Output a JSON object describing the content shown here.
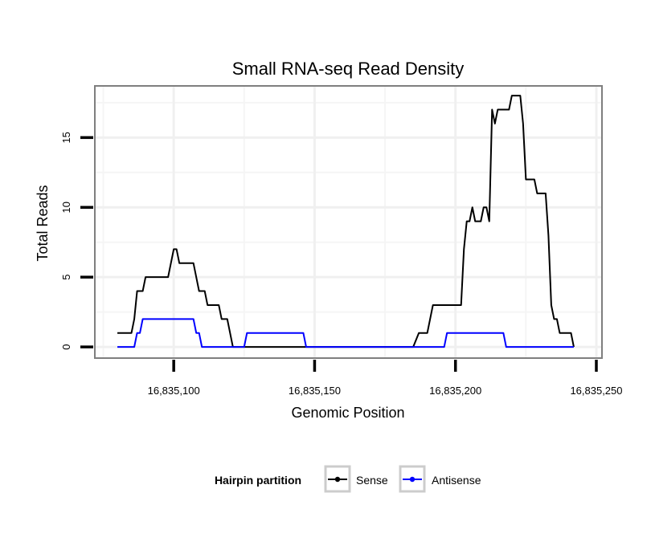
{
  "chart_data": {
    "type": "line",
    "title": "Small RNA-seq Read Density",
    "xlabel": "Genomic Position",
    "ylabel": "Total Reads",
    "xlim": [
      16835072,
      16835252
    ],
    "ylim": [
      -0.8,
      18.7
    ],
    "x_ticks": [
      16835100,
      16835150,
      16835200,
      16835250
    ],
    "x_tick_labels": [
      "16,835,100",
      "16,835,150",
      "16,835,200",
      "16,835,250"
    ],
    "y_ticks": [
      0,
      5,
      10,
      15
    ],
    "y_tick_labels": [
      "0",
      "5",
      "10",
      "15"
    ],
    "grid": true,
    "legend": {
      "title": "Hairpin partition",
      "position": "bottom"
    },
    "series": [
      {
        "name": "Sense",
        "color": "#000000",
        "points": [
          [
            16835080,
            1
          ],
          [
            16835085,
            1
          ],
          [
            16835086,
            2
          ],
          [
            16835087,
            4
          ],
          [
            16835089,
            4
          ],
          [
            16835090,
            5
          ],
          [
            16835098,
            5
          ],
          [
            16835100,
            7
          ],
          [
            16835101,
            7
          ],
          [
            16835102,
            6
          ],
          [
            16835107,
            6
          ],
          [
            16835109,
            4
          ],
          [
            16835111,
            4
          ],
          [
            16835112,
            3
          ],
          [
            16835116,
            3
          ],
          [
            16835117,
            2
          ],
          [
            16835119,
            2
          ],
          [
            16835121,
            0
          ],
          [
            16835185,
            0
          ],
          [
            16835187,
            1
          ],
          [
            16835190,
            1
          ],
          [
            16835192,
            3
          ],
          [
            16835202,
            3
          ],
          [
            16835203,
            7
          ],
          [
            16835204,
            9
          ],
          [
            16835205,
            9
          ],
          [
            16835206,
            10
          ],
          [
            16835207,
            9
          ],
          [
            16835209,
            9
          ],
          [
            16835210,
            10
          ],
          [
            16835211,
            10
          ],
          [
            16835212,
            9
          ],
          [
            16835213,
            17
          ],
          [
            16835214,
            16
          ],
          [
            16835215,
            17
          ],
          [
            16835219,
            17
          ],
          [
            16835220,
            18
          ],
          [
            16835223,
            18
          ],
          [
            16835224,
            16
          ],
          [
            16835225,
            12
          ],
          [
            16835228,
            12
          ],
          [
            16835229,
            11
          ],
          [
            16835232,
            11
          ],
          [
            16835233,
            8
          ],
          [
            16835234,
            3
          ],
          [
            16835235,
            2
          ],
          [
            16835236,
            2
          ],
          [
            16835237,
            1
          ],
          [
            16835241,
            1
          ],
          [
            16835242,
            0
          ]
        ]
      },
      {
        "name": "Antisense",
        "color": "#0000ff",
        "points": [
          [
            16835080,
            0
          ],
          [
            16835086,
            0
          ],
          [
            16835087,
            1
          ],
          [
            16835088,
            1
          ],
          [
            16835089,
            2
          ],
          [
            16835107,
            2
          ],
          [
            16835108,
            1
          ],
          [
            16835109,
            1
          ],
          [
            16835110,
            0
          ],
          [
            16835125,
            0
          ],
          [
            16835126,
            1
          ],
          [
            16835146,
            1
          ],
          [
            16835147,
            0
          ],
          [
            16835196,
            0
          ],
          [
            16835197,
            1
          ],
          [
            16835217,
            1
          ],
          [
            16835218,
            0
          ],
          [
            16835242,
            0
          ]
        ]
      }
    ]
  }
}
